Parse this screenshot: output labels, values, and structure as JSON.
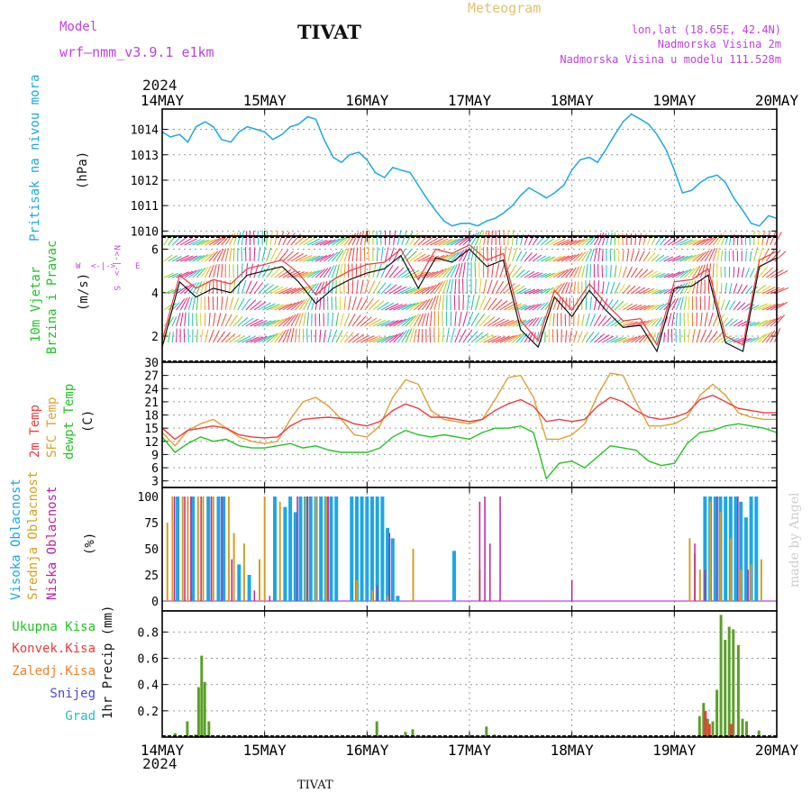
{
  "header": {
    "model_label": "Model",
    "model_name": "wrf–nmm_v3.9.1  e1km",
    "location": "TIVAT",
    "product": "Meteogram",
    "coords": "lon,lat (18.65E, 42.4N)",
    "elevation": "Nadmorska Visina 2m",
    "model_elevation": "Nadmorska Visina u modelu 111.528m",
    "year_top": "2024",
    "year_bottom": "2024",
    "footer_station": "TIVAT",
    "credit": "made by Angel"
  },
  "dates": [
    "14MAY",
    "15MAY",
    "16MAY",
    "17MAY",
    "18MAY",
    "19MAY",
    "20MAY"
  ],
  "colors": {
    "pressure": "#1ca7e6",
    "temp2m": "#ee3b3b",
    "sfc": "#e0a030",
    "dewpt": "#22c422",
    "high": "#1ca7e6",
    "mid": "#d4a020",
    "low": "#c020a0",
    "total": "#5aa028",
    "conv": "#ee3b3b",
    "frozen": "#f0802a",
    "snow": "#4848e0",
    "hail": "#20c0c0",
    "wind_line": "#111111",
    "gust_line": "#ee3b3b",
    "compass": "#c040e0"
  },
  "chart_data": [
    {
      "type": "line",
      "panel": "pressure",
      "title_label": "Pritisak na nivou mora",
      "ylabel": "(hPa)",
      "yticks": [
        "1010",
        "1011",
        "1012",
        "1013",
        "1014"
      ],
      "ylim": [
        1009.8,
        1014.8
      ],
      "grid": true,
      "x_unit": "days since 14MAY 00UTC",
      "x": [
        0,
        0.08,
        0.17,
        0.25,
        0.33,
        0.42,
        0.5,
        0.58,
        0.67,
        0.75,
        0.83,
        0.92,
        1.0,
        1.08,
        1.17,
        1.25,
        1.33,
        1.42,
        1.5,
        1.58,
        1.67,
        1.75,
        1.83,
        1.92,
        2.0,
        2.08,
        2.17,
        2.25,
        2.33,
        2.42,
        2.5,
        2.58,
        2.67,
        2.75,
        2.83,
        2.92,
        3.0,
        3.08,
        3.17,
        3.25,
        3.33,
        3.42,
        3.5,
        3.58,
        3.67,
        3.75,
        3.83,
        3.92,
        4.0,
        4.08,
        4.17,
        4.25,
        4.33,
        4.42,
        4.5,
        4.58,
        4.67,
        4.75,
        4.83,
        4.92,
        5.0,
        5.08,
        5.17,
        5.25,
        5.33,
        5.42,
        5.5,
        5.58,
        5.67,
        5.75,
        5.83,
        5.92,
        6.0
      ],
      "series": [
        {
          "name": "Pritisak na nivou mora",
          "values": [
            1013.9,
            1013.7,
            1013.8,
            1013.5,
            1014.1,
            1014.3,
            1014.1,
            1013.6,
            1013.5,
            1013.9,
            1014.1,
            1014.0,
            1013.9,
            1013.6,
            1013.8,
            1014.1,
            1014.2,
            1014.5,
            1014.4,
            1013.6,
            1012.9,
            1012.7,
            1013.0,
            1013.1,
            1012.8,
            1012.3,
            1012.1,
            1012.5,
            1012.4,
            1012.3,
            1011.8,
            1011.3,
            1010.8,
            1010.4,
            1010.2,
            1010.3,
            1010.3,
            1010.2,
            1010.4,
            1010.5,
            1010.7,
            1011.0,
            1011.4,
            1011.7,
            1011.5,
            1011.3,
            1011.5,
            1011.8,
            1012.4,
            1012.8,
            1012.9,
            1012.7,
            1013.2,
            1013.8,
            1014.3,
            1014.6,
            1014.4,
            1014.2,
            1013.8,
            1013.2,
            1012.4,
            1011.5,
            1011.6,
            1011.9,
            1012.1,
            1012.2,
            1011.9,
            1011.3,
            1010.8,
            1010.3,
            1010.2,
            1010.6,
            1010.5
          ]
        }
      ]
    },
    {
      "type": "line",
      "panel": "wind",
      "title_label": "10m Vjetar",
      "title_label2": "Brzina i Pravac",
      "ylabel": "(m/s)",
      "compass": [
        "W",
        "E",
        "N",
        "S"
      ],
      "yticks": [
        "2",
        "4",
        "6"
      ],
      "ylim": [
        0.8,
        6.6
      ],
      "grid": true,
      "x_unit": "days since 14MAY 00UTC",
      "x": [
        0,
        0.17,
        0.33,
        0.5,
        0.67,
        0.83,
        1.0,
        1.17,
        1.33,
        1.5,
        1.67,
        1.83,
        2.0,
        2.17,
        2.33,
        2.5,
        2.67,
        2.83,
        3.0,
        3.17,
        3.33,
        3.5,
        3.67,
        3.83,
        4.0,
        4.17,
        4.33,
        4.5,
        4.67,
        4.83,
        5.0,
        5.17,
        5.33,
        5.5,
        5.67,
        5.83,
        6.0
      ],
      "series": [
        {
          "name": "speed",
          "values": [
            1.5,
            4.5,
            3.8,
            4.2,
            4.0,
            4.8,
            5.0,
            5.2,
            4.5,
            3.5,
            4.2,
            4.6,
            4.9,
            5.1,
            5.7,
            4.2,
            5.6,
            5.4,
            6.0,
            5.2,
            5.5,
            2.3,
            1.5,
            3.8,
            2.9,
            4.1,
            3.2,
            2.4,
            2.5,
            1.3,
            4.2,
            4.3,
            4.8,
            1.7,
            1.3,
            5.2,
            5.6
          ]
        },
        {
          "name": "gust",
          "values": [
            1.8,
            4.8,
            4.2,
            4.6,
            4.4,
            5.1,
            5.3,
            5.5,
            4.9,
            3.9,
            4.6,
            5.0,
            5.3,
            5.4,
            6.0,
            4.6,
            6.0,
            5.8,
            6.2,
            5.5,
            5.8,
            2.7,
            1.8,
            4.1,
            3.2,
            4.4,
            3.5,
            2.7,
            2.8,
            1.6,
            4.5,
            4.6,
            5.1,
            2.0,
            1.6,
            5.5,
            5.9
          ]
        }
      ]
    },
    {
      "type": "line",
      "panel": "temperature",
      "labels": [
        "2m Temp",
        "SFC Temp",
        "dewpt Temp"
      ],
      "ylabel": "(C)",
      "yticks": [
        "3",
        "6",
        "9",
        "12",
        "15",
        "18",
        "21",
        "24",
        "27",
        "30"
      ],
      "ylim": [
        1.5,
        30
      ],
      "grid": true,
      "x_unit": "days since 14MAY 00UTC",
      "x": [
        0,
        0.125,
        0.25,
        0.375,
        0.5,
        0.625,
        0.75,
        0.875,
        1.0,
        1.125,
        1.25,
        1.375,
        1.5,
        1.625,
        1.75,
        1.875,
        2.0,
        2.125,
        2.25,
        2.375,
        2.5,
        2.625,
        2.75,
        2.875,
        3.0,
        3.125,
        3.25,
        3.375,
        3.5,
        3.625,
        3.75,
        3.875,
        4.0,
        4.125,
        4.25,
        4.375,
        4.5,
        4.625,
        4.75,
        4.875,
        5.0,
        5.125,
        5.25,
        5.375,
        5.5,
        5.625,
        5.75,
        5.875,
        6.0
      ],
      "series": [
        {
          "name": "2m Temp",
          "values": [
            15.0,
            12.5,
            14.5,
            15.0,
            15.5,
            15.0,
            13.5,
            13.0,
            12.8,
            13.0,
            15.5,
            17.0,
            17.3,
            17.5,
            17.2,
            16.0,
            15.5,
            16.5,
            19.0,
            20.5,
            19.5,
            17.5,
            17.5,
            17.0,
            16.5,
            17.0,
            19.0,
            20.5,
            21.5,
            20.0,
            16.5,
            17.0,
            16.5,
            17.0,
            20.0,
            22.0,
            21.0,
            19.0,
            17.5,
            17.0,
            17.5,
            18.5,
            21.5,
            22.5,
            21.0,
            19.5,
            19.0,
            18.5,
            18.5
          ]
        },
        {
          "name": "SFC Temp",
          "values": [
            14.0,
            11.0,
            14.5,
            16.0,
            17.0,
            15.0,
            13.0,
            12.0,
            11.5,
            12.0,
            17.0,
            21.0,
            22.0,
            20.0,
            17.0,
            13.5,
            13.0,
            15.5,
            22.0,
            26.0,
            25.0,
            19.0,
            17.0,
            16.5,
            16.0,
            17.0,
            21.5,
            26.5,
            27.0,
            22.0,
            12.5,
            12.5,
            13.5,
            16.0,
            22.5,
            27.5,
            27.0,
            21.0,
            15.5,
            15.5,
            16.0,
            17.5,
            22.5,
            25.0,
            22.5,
            18.5,
            17.5,
            17.0,
            17.0
          ]
        },
        {
          "name": "dewpt Temp",
          "values": [
            13.0,
            9.5,
            11.5,
            13.0,
            12.0,
            12.5,
            11.0,
            10.5,
            10.5,
            11.0,
            11.5,
            10.5,
            11.0,
            10.0,
            9.5,
            9.5,
            9.5,
            10.5,
            13.0,
            14.5,
            13.5,
            13.0,
            13.5,
            13.0,
            12.5,
            14.0,
            15.0,
            15.0,
            15.5,
            14.0,
            3.5,
            7.0,
            7.5,
            6.0,
            8.5,
            11.0,
            10.5,
            10.0,
            7.5,
            6.5,
            7.0,
            11.5,
            14.0,
            14.5,
            15.5,
            16.0,
            15.5,
            15.0,
            14.0
          ]
        }
      ]
    },
    {
      "type": "bar",
      "panel": "clouds",
      "labels": [
        "Visoka Oblacnost",
        "Srednja Oblacnost",
        "Niska Oblacnost"
      ],
      "ylabel": "(%)",
      "yticks": [
        "0",
        "25",
        "50",
        "75",
        "100"
      ],
      "ylim": [
        0,
        100
      ],
      "grid": true,
      "x_unit": "days since 14MAY 00UTC",
      "series": [
        {
          "name": "Visoka Oblacnost",
          "x": [
            0.15,
            0.3,
            0.45,
            0.55,
            0.6,
            0.75,
            0.85,
            1.1,
            1.2,
            1.25,
            1.3,
            1.35,
            1.4,
            1.45,
            1.5,
            1.55,
            1.6,
            1.65,
            1.7,
            1.85,
            1.9,
            1.95,
            2.0,
            2.05,
            2.1,
            2.15,
            2.2,
            2.25,
            2.3,
            2.85,
            5.3,
            5.35,
            5.4,
            5.45,
            5.5,
            5.55,
            5.6,
            5.65,
            5.7,
            5.75,
            5.8
          ],
          "values": [
            100,
            100,
            100,
            100,
            100,
            35,
            25,
            100,
            90,
            100,
            85,
            100,
            100,
            100,
            100,
            100,
            100,
            100,
            100,
            100,
            100,
            100,
            100,
            100,
            100,
            100,
            70,
            60,
            5,
            48,
            100,
            100,
            100,
            100,
            100,
            100,
            100,
            95,
            80,
            100,
            100
          ]
        },
        {
          "name": "Srednja Oblacnost",
          "x": [
            0.05,
            0.1,
            0.2,
            0.25,
            0.35,
            0.4,
            0.5,
            0.65,
            0.7,
            0.8,
            0.95,
            1.0,
            1.15,
            1.4,
            1.5,
            1.6,
            1.9,
            2.05,
            2.2,
            2.45,
            3.1,
            5.15,
            5.2,
            5.25,
            5.35,
            5.45,
            5.55,
            5.65,
            5.75,
            5.85
          ],
          "values": [
            75,
            100,
            100,
            100,
            100,
            100,
            100,
            100,
            65,
            55,
            40,
            100,
            95,
            100,
            100,
            100,
            20,
            10,
            5,
            50,
            30,
            60,
            45,
            30,
            95,
            85,
            60,
            30,
            35,
            40
          ]
        },
        {
          "name": "Niska Oblacnost",
          "x": [
            0.12,
            0.22,
            0.28,
            0.38,
            0.48,
            0.58,
            0.68,
            0.9,
            1.05,
            1.32,
            1.42,
            1.62,
            2.1,
            2.22,
            3.1,
            3.15,
            3.2,
            3.3,
            4.0,
            5.2,
            5.3,
            5.42,
            5.62,
            5.72
          ],
          "values": [
            100,
            100,
            100,
            100,
            100,
            100,
            40,
            10,
            5,
            100,
            100,
            100,
            15,
            65,
            95,
            100,
            55,
            100,
            20,
            55,
            30,
            100,
            100,
            30
          ]
        }
      ]
    },
    {
      "type": "bar",
      "panel": "precip",
      "labels": [
        "Ukupna Kisa",
        "Konvek.Kisa",
        "Zaledj.Kisa",
        "Snijeg",
        "Grad"
      ],
      "ylabel": "1hr Precip (mm)",
      "yticks": [
        "0.2",
        "0.4",
        "0.6",
        "0.8"
      ],
      "ylim": [
        0,
        0.96
      ],
      "grid": true,
      "x_unit": "days since 14MAY 00UTC",
      "series": [
        {
          "name": "Ukupna Kisa",
          "x": [
            0.13,
            0.25,
            0.33,
            0.36,
            0.39,
            0.42,
            0.46,
            2.1,
            2.38,
            2.45,
            3.17,
            3.25,
            5.25,
            5.29,
            5.33,
            5.38,
            5.42,
            5.46,
            5.5,
            5.54,
            5.58,
            5.63,
            5.67,
            5.71,
            5.83
          ],
          "values": [
            0.03,
            0.12,
            0.02,
            0.38,
            0.62,
            0.42,
            0.12,
            0.12,
            0.04,
            0.06,
            0.08,
            0.02,
            0.16,
            0.26,
            0.14,
            0.12,
            0.36,
            0.93,
            0.74,
            0.84,
            0.82,
            0.7,
            0.14,
            0.12,
            0.05
          ]
        },
        {
          "name": "Konvek.Kisa",
          "x": [
            5.29,
            5.33,
            5.54
          ],
          "values": [
            0.2,
            0.1,
            0.1
          ]
        }
      ]
    }
  ]
}
